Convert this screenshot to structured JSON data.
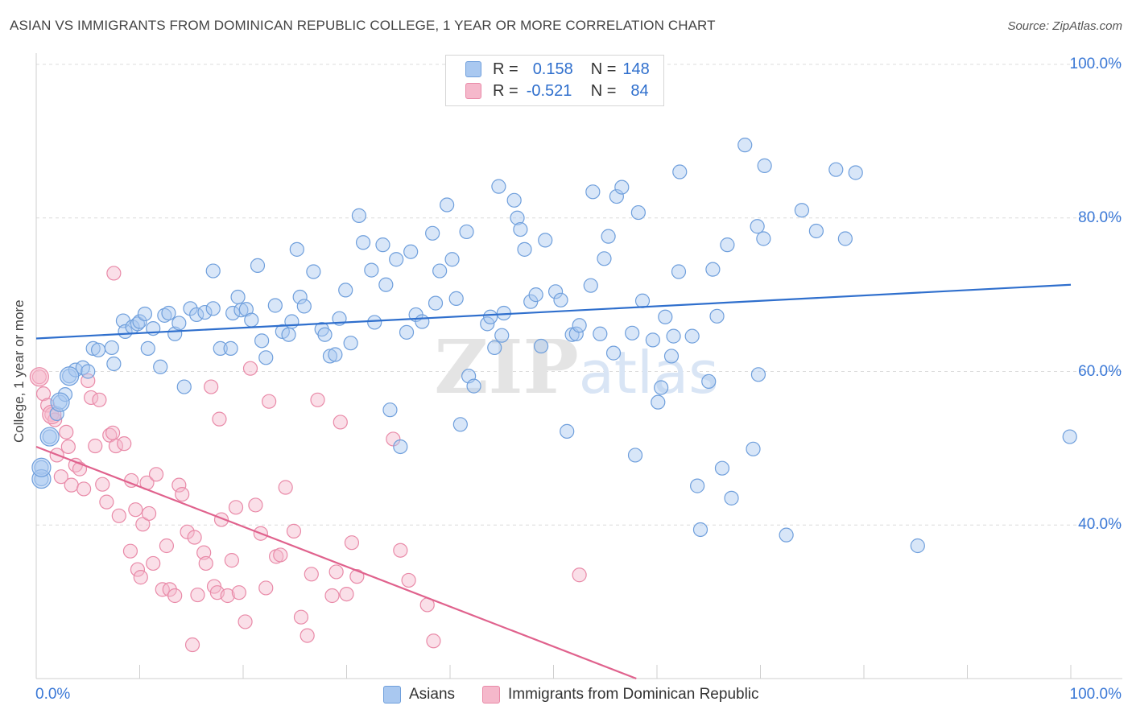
{
  "header": {
    "title": "ASIAN VS IMMIGRANTS FROM DOMINICAN REPUBLIC COLLEGE, 1 YEAR OR MORE CORRELATION CHART",
    "source": "Source: ZipAtlas.com"
  },
  "watermark": "ZIPatlas",
  "legend": {
    "rows": [
      {
        "r_label": "R =",
        "r_value": "0.158",
        "n_label": "N =",
        "n_value": "148",
        "color": "#a9c8f0"
      },
      {
        "r_label": "R =",
        "r_value": "-0.521",
        "n_label": "N =",
        "n_value": "84",
        "color": "#f5b8cb"
      }
    ]
  },
  "colors": {
    "asian_fill": "#a9c8f0",
    "asian_stroke": "#6f9fdc",
    "asian_line": "#2f6fcd",
    "dom_fill": "#f5b8cb",
    "dom_stroke": "#e98aa8",
    "dom_line": "#e0628d",
    "tick_text": "#3a78d6"
  },
  "chart_data": {
    "type": "scatter",
    "title": "ASIAN VS IMMIGRANTS FROM DOMINICAN REPUBLIC COLLEGE, 1 YEAR OR MORE CORRELATION CHART",
    "xlabel": "",
    "ylabel": "College, 1 year or more",
    "xlim": [
      0,
      100
    ],
    "ylim": [
      20,
      100
    ],
    "x_tick_labels": [
      "0.0%",
      "100.0%"
    ],
    "y_tick_labels": [
      "100.0%",
      "80.0%",
      "60.0%",
      "40.0%"
    ],
    "y_ticks": [
      100,
      80,
      60,
      40
    ],
    "grid": true,
    "legend_position": "top-center",
    "series": [
      {
        "name": "Asians",
        "regression": {
          "x": [
            0,
            100
          ],
          "y": [
            64.3,
            71.3
          ]
        },
        "points": [
          [
            0.5,
            46
          ],
          [
            0.5,
            47.5
          ],
          [
            1.3,
            51.5
          ],
          [
            2,
            54.5
          ],
          [
            2.3,
            56
          ],
          [
            2.8,
            57
          ],
          [
            3.2,
            59.4
          ],
          [
            3.8,
            60.2
          ],
          [
            4.5,
            60.5
          ],
          [
            5,
            60
          ],
          [
            5.5,
            63
          ],
          [
            6,
            62.8
          ],
          [
            7.3,
            63.1
          ],
          [
            7.5,
            61
          ],
          [
            8.4,
            66.6
          ],
          [
            8.6,
            65.2
          ],
          [
            9.3,
            65.8
          ],
          [
            9.8,
            66.2
          ],
          [
            10,
            66.5
          ],
          [
            10.5,
            67.5
          ],
          [
            10.8,
            63
          ],
          [
            11.3,
            65.6
          ],
          [
            12,
            60.6
          ],
          [
            12.4,
            67.3
          ],
          [
            12.8,
            67.6
          ],
          [
            13.4,
            64.9
          ],
          [
            13.8,
            66.3
          ],
          [
            14.3,
            58
          ],
          [
            14.9,
            68.2
          ],
          [
            15.5,
            67.4
          ],
          [
            16.3,
            67.7
          ],
          [
            17.1,
            68.2
          ],
          [
            17.1,
            73.1
          ],
          [
            17.8,
            63
          ],
          [
            18.8,
            63
          ],
          [
            19,
            67.6
          ],
          [
            19.5,
            69.7
          ],
          [
            19.8,
            68
          ],
          [
            20.3,
            68.1
          ],
          [
            20.8,
            66.7
          ],
          [
            21.4,
            73.8
          ],
          [
            21.8,
            64
          ],
          [
            22.2,
            61.8
          ],
          [
            23.1,
            68.6
          ],
          [
            23.8,
            65.2
          ],
          [
            24.4,
            64.8
          ],
          [
            24.7,
            66.5
          ],
          [
            25.2,
            75.9
          ],
          [
            25.5,
            69.7
          ],
          [
            25.9,
            68.5
          ],
          [
            26.8,
            73
          ],
          [
            27.6,
            65.5
          ],
          [
            27.9,
            64.8
          ],
          [
            28.4,
            62
          ],
          [
            28.9,
            62.2
          ],
          [
            29.3,
            66.9
          ],
          [
            29.9,
            70.6
          ],
          [
            30.4,
            63.7
          ],
          [
            31.2,
            80.3
          ],
          [
            31.6,
            76.8
          ],
          [
            32.4,
            73.2
          ],
          [
            32.7,
            66.4
          ],
          [
            33.5,
            76.5
          ],
          [
            33.8,
            71.3
          ],
          [
            34.2,
            55
          ],
          [
            34.8,
            74.6
          ],
          [
            35.2,
            50.2
          ],
          [
            35.8,
            65.1
          ],
          [
            36.2,
            75.6
          ],
          [
            36.7,
            67.4
          ],
          [
            37.3,
            66.5
          ],
          [
            38.3,
            78
          ],
          [
            38.6,
            68.9
          ],
          [
            39,
            73.1
          ],
          [
            39.7,
            81.7
          ],
          [
            40.2,
            74.6
          ],
          [
            40.6,
            69.5
          ],
          [
            41,
            53.1
          ],
          [
            41.6,
            78.2
          ],
          [
            41.8,
            59.4
          ],
          [
            42.3,
            58.1
          ],
          [
            43.6,
            66.2
          ],
          [
            43.9,
            67.1
          ],
          [
            44.3,
            63.1
          ],
          [
            44.7,
            84.1
          ],
          [
            45,
            64.7
          ],
          [
            45.2,
            67.6
          ],
          [
            46.2,
            82.3
          ],
          [
            46.5,
            80
          ],
          [
            46.8,
            78.5
          ],
          [
            47.2,
            75.9
          ],
          [
            47.8,
            69.1
          ],
          [
            48.3,
            70
          ],
          [
            48.8,
            63.3
          ],
          [
            49.2,
            77.1
          ],
          [
            50.2,
            70.4
          ],
          [
            50.7,
            69.3
          ],
          [
            51.3,
            52.2
          ],
          [
            51.8,
            64.8
          ],
          [
            52.2,
            64.9
          ],
          [
            52.5,
            66
          ],
          [
            53.6,
            71.2
          ],
          [
            53.8,
            83.4
          ],
          [
            54.5,
            64.9
          ],
          [
            54.9,
            74.7
          ],
          [
            55.3,
            77.6
          ],
          [
            55.8,
            62.4
          ],
          [
            56.1,
            82.8
          ],
          [
            56.6,
            84
          ],
          [
            57.6,
            65
          ],
          [
            57.9,
            49.1
          ],
          [
            58.2,
            80.7
          ],
          [
            58.6,
            69.2
          ],
          [
            59.6,
            64.1
          ],
          [
            60.1,
            56
          ],
          [
            60.4,
            57.9
          ],
          [
            60.8,
            67.1
          ],
          [
            61.4,
            62
          ],
          [
            61.6,
            64.6
          ],
          [
            62.1,
            73
          ],
          [
            62.2,
            86
          ],
          [
            63.4,
            64.6
          ],
          [
            63.9,
            45.1
          ],
          [
            64.2,
            39.4
          ],
          [
            65,
            58.7
          ],
          [
            65.4,
            73.3
          ],
          [
            65.8,
            67.2
          ],
          [
            66.3,
            47.4
          ],
          [
            66.8,
            76.5
          ],
          [
            67.2,
            43.5
          ],
          [
            68.5,
            89.5
          ],
          [
            69.3,
            49.9
          ],
          [
            69.7,
            78.9
          ],
          [
            69.8,
            59.6
          ],
          [
            70.3,
            77.3
          ],
          [
            70.4,
            86.8
          ],
          [
            72.5,
            38.7
          ],
          [
            74,
            81
          ],
          [
            75.4,
            78.3
          ],
          [
            77.3,
            86.3
          ],
          [
            78.2,
            77.3
          ],
          [
            79.2,
            85.9
          ],
          [
            85.2,
            37.3
          ],
          [
            99.9,
            51.5
          ]
        ],
        "big_points": [
          [
            0.5,
            46
          ],
          [
            0.5,
            47.5
          ],
          [
            1.3,
            51.5
          ],
          [
            2.3,
            56
          ],
          [
            3.2,
            59.4
          ]
        ]
      },
      {
        "name": "Immigrants from Dominican Republic",
        "regression": {
          "x": [
            0,
            58
          ],
          "y": [
            50.2,
            20
          ]
        },
        "points": [
          [
            0.3,
            59.3
          ],
          [
            0.7,
            57.1
          ],
          [
            1.1,
            55.6
          ],
          [
            1.5,
            54.4
          ],
          [
            1.8,
            53.7
          ],
          [
            2,
            49.1
          ],
          [
            2.4,
            46.3
          ],
          [
            2.9,
            52.1
          ],
          [
            3.1,
            50.2
          ],
          [
            3.4,
            45.2
          ],
          [
            3.8,
            47.8
          ],
          [
            4.2,
            47.3
          ],
          [
            4.6,
            44.7
          ],
          [
            5,
            58.8
          ],
          [
            5.3,
            56.6
          ],
          [
            5.7,
            50.3
          ],
          [
            6.1,
            56.3
          ],
          [
            6.4,
            45.3
          ],
          [
            6.8,
            43
          ],
          [
            7.1,
            51.7
          ],
          [
            7.4,
            52
          ],
          [
            7.7,
            50.3
          ],
          [
            8,
            41.2
          ],
          [
            8.5,
            50.6
          ],
          [
            9.1,
            36.6
          ],
          [
            9.2,
            45.8
          ],
          [
            9.6,
            42
          ],
          [
            9.8,
            34.2
          ],
          [
            10.1,
            33.2
          ],
          [
            10.3,
            40.1
          ],
          [
            10.7,
            45.5
          ],
          [
            10.9,
            41.5
          ],
          [
            11.3,
            35
          ],
          [
            11.6,
            46.6
          ],
          [
            12.2,
            31.6
          ],
          [
            12.6,
            37.3
          ],
          [
            12.9,
            31.6
          ],
          [
            13.4,
            30.8
          ],
          [
            13.8,
            45.2
          ],
          [
            14.1,
            44
          ],
          [
            14.6,
            39.1
          ],
          [
            15.1,
            24.4
          ],
          [
            15.3,
            38.4
          ],
          [
            15.6,
            30.9
          ],
          [
            16.2,
            36.4
          ],
          [
            16.4,
            35
          ],
          [
            16.9,
            58
          ],
          [
            17.2,
            32
          ],
          [
            17.5,
            31.2
          ],
          [
            17.7,
            53.8
          ],
          [
            17.9,
            40.7
          ],
          [
            18.5,
            30.8
          ],
          [
            18.9,
            35.4
          ],
          [
            19.3,
            42.3
          ],
          [
            19.6,
            31.2
          ],
          [
            20.2,
            27.4
          ],
          [
            20.7,
            60.4
          ],
          [
            21.2,
            42.6
          ],
          [
            21.7,
            38.9
          ],
          [
            22.2,
            31.8
          ],
          [
            22.5,
            56.1
          ],
          [
            23.2,
            35.9
          ],
          [
            23.6,
            36.1
          ],
          [
            24.1,
            44.9
          ],
          [
            24.9,
            39.2
          ],
          [
            25.6,
            28
          ],
          [
            26.2,
            25.6
          ],
          [
            26.6,
            33.6
          ],
          [
            27.2,
            56.3
          ],
          [
            28.6,
            30.8
          ],
          [
            29,
            33.9
          ],
          [
            29.4,
            53.4
          ],
          [
            30,
            31
          ],
          [
            30.5,
            37.7
          ],
          [
            31,
            33.3
          ],
          [
            34.5,
            51.2
          ],
          [
            35.2,
            36.7
          ],
          [
            36,
            32.8
          ],
          [
            37.8,
            29.6
          ],
          [
            38.4,
            24.9
          ],
          [
            52.5,
            33.5
          ],
          [
            7.5,
            72.8
          ]
        ],
        "big_points": [
          [
            0.3,
            59.3
          ],
          [
            1.5,
            54.4
          ]
        ]
      }
    ]
  }
}
